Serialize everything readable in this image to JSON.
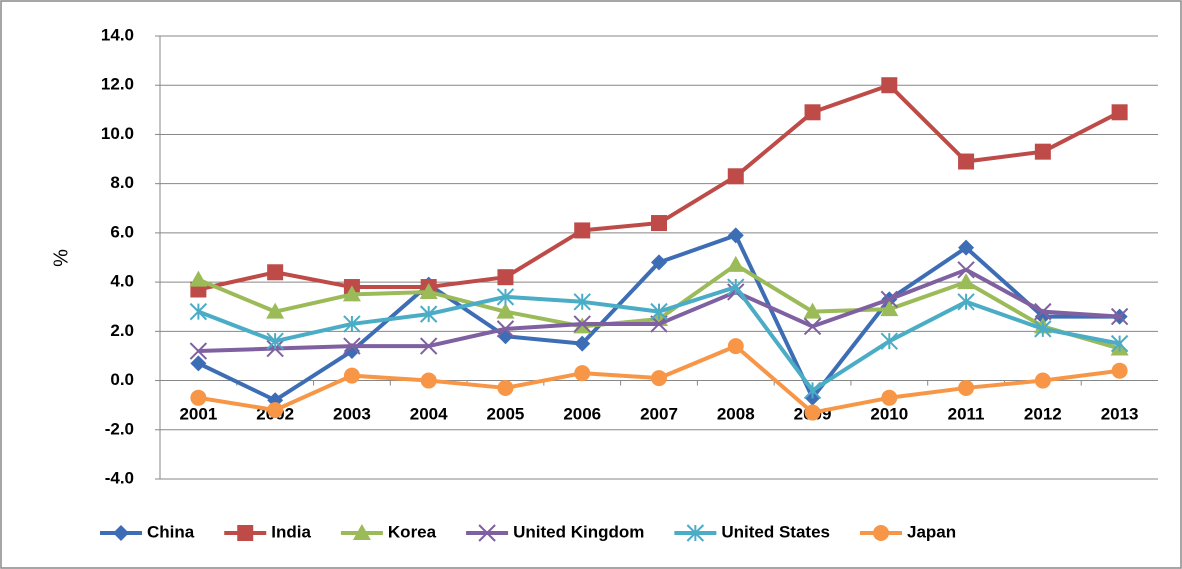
{
  "chart_data": {
    "type": "line",
    "y_label": "%",
    "categories": [
      "2001",
      "2002",
      "2003",
      "2004",
      "2005",
      "2006",
      "2007",
      "2008",
      "2009",
      "2010",
      "2011",
      "2012",
      "2013"
    ],
    "ylim": [
      -4,
      14
    ],
    "yticks": [
      {
        "value": -4,
        "label": "-4.0"
      },
      {
        "value": -2,
        "label": "-2.0"
      },
      {
        "value": 0,
        "label": "0.0"
      },
      {
        "value": 2,
        "label": "2.0"
      },
      {
        "value": 4,
        "label": "4.0"
      },
      {
        "value": 6,
        "label": "6.0"
      },
      {
        "value": 8,
        "label": "8.0"
      },
      {
        "value": 10,
        "label": "10.0"
      },
      {
        "value": 12,
        "label": "12.0"
      },
      {
        "value": 14,
        "label": "14.0"
      }
    ],
    "grid": true,
    "legend": "bottom",
    "series": [
      {
        "name": "China",
        "color": "#3d6db5",
        "marker": "diamond",
        "values": [
          0.7,
          -0.8,
          1.2,
          3.9,
          1.8,
          1.5,
          4.8,
          5.9,
          -0.7,
          3.3,
          5.4,
          2.6,
          2.6
        ]
      },
      {
        "name": "India",
        "color": "#be4b48",
        "marker": "square",
        "values": [
          3.7,
          4.4,
          3.8,
          3.8,
          4.2,
          6.1,
          6.4,
          8.3,
          10.9,
          12.0,
          8.9,
          9.3,
          10.9
        ]
      },
      {
        "name": "Korea",
        "color": "#9bbb59",
        "marker": "triangle",
        "values": [
          4.1,
          2.8,
          3.5,
          3.6,
          2.8,
          2.2,
          2.5,
          4.7,
          2.8,
          2.9,
          4.0,
          2.2,
          1.3
        ]
      },
      {
        "name": "United Kingdom",
        "color": "#7f60a0",
        "marker": "x",
        "values": [
          1.2,
          1.3,
          1.4,
          1.4,
          2.1,
          2.3,
          2.3,
          3.6,
          2.2,
          3.3,
          4.5,
          2.8,
          2.6
        ]
      },
      {
        "name": "United States",
        "color": "#4bacc6",
        "marker": "star",
        "values": [
          2.8,
          1.6,
          2.3,
          2.7,
          3.4,
          3.2,
          2.8,
          3.8,
          -0.4,
          1.6,
          3.2,
          2.1,
          1.5
        ]
      },
      {
        "name": "Japan",
        "color": "#f79646",
        "marker": "circle",
        "values": [
          -0.7,
          -1.2,
          0.2,
          0.0,
          -0.3,
          0.3,
          0.1,
          1.4,
          -1.3,
          -0.7,
          -0.3,
          0.0,
          0.4
        ]
      }
    ]
  }
}
